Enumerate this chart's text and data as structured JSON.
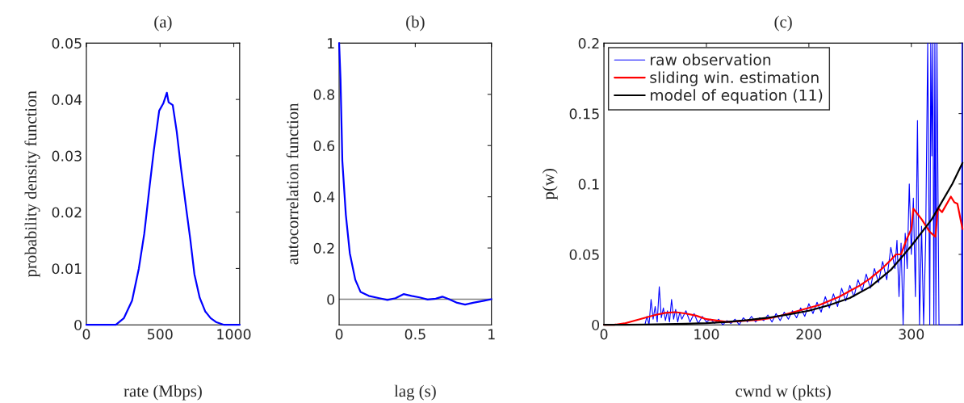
{
  "chart_data": [
    {
      "type": "line",
      "title": "(a)",
      "xlabel": "rate (Mbps)",
      "ylabel": "probability density function",
      "xlim": [
        0,
        1040
      ],
      "xticks": [
        0,
        500,
        1000
      ],
      "ylim": [
        0,
        0.05
      ],
      "yticks": [
        0,
        0.01,
        0.02,
        0.03,
        0.04,
        0.05
      ],
      "grid": false,
      "legend": false,
      "series": [
        {
          "color": "#0000ff",
          "x": [
            0,
            200,
            255,
            310,
            356,
            393,
            430,
            458,
            494,
            522,
            546,
            558,
            586,
            613,
            641,
            678,
            705,
            733,
            769,
            806,
            843,
            879,
            934,
            1040
          ],
          "values": [
            0,
            0,
            0.0012,
            0.0043,
            0.01,
            0.0162,
            0.0248,
            0.031,
            0.038,
            0.0393,
            0.0412,
            0.0395,
            0.039,
            0.0343,
            0.028,
            0.0205,
            0.0152,
            0.009,
            0.0048,
            0.0024,
            0.0012,
            0.0005,
            0,
            0
          ]
        }
      ]
    },
    {
      "type": "line",
      "title": "(b)",
      "xlabel": "lag (s)",
      "ylabel": "autocorrelation function",
      "xlim": [
        0,
        1
      ],
      "xticks": [
        0,
        0.5,
        1
      ],
      "ylim": [
        -0.1,
        1
      ],
      "yticks": [
        0,
        0.2,
        0.4,
        0.6,
        0.8,
        1
      ],
      "grid": false,
      "legend": false,
      "ref_lines": [
        {
          "axis": "y",
          "value": 0,
          "color": "#808080"
        }
      ],
      "series": [
        {
          "color": "#0000ff",
          "x": [
            0,
            0.009,
            0.021,
            0.044,
            0.07,
            0.106,
            0.141,
            0.194,
            0.264,
            0.317,
            0.37,
            0.423,
            0.475,
            0.528,
            0.581,
            0.634,
            0.678,
            0.722,
            0.775,
            0.827,
            0.88,
            0.951,
            1
          ],
          "values": [
            1,
            0.86,
            0.54,
            0.33,
            0.18,
            0.076,
            0.028,
            0.013,
            0.004,
            -0.003,
            0.004,
            0.02,
            0.013,
            0.007,
            -0.001,
            0.002,
            0.01,
            0,
            -0.014,
            -0.021,
            -0.014,
            -0.006,
            0
          ]
        }
      ]
    },
    {
      "type": "line",
      "title": "(c)",
      "xlabel": "cwnd w (pkts)",
      "ylabel": "p(w)",
      "xlim": [
        0,
        350
      ],
      "xticks": [
        0,
        100,
        200,
        300
      ],
      "ylim": [
        0,
        0.2
      ],
      "yticks": [
        0,
        0.05,
        0.1,
        0.15,
        0.2
      ],
      "grid": false,
      "legend": "top left",
      "series": [
        {
          "name": "raw observation",
          "color": "#0000ff",
          "x": [
            0,
            40,
            42,
            44,
            46,
            48,
            50,
            52,
            54,
            56,
            58,
            60,
            62,
            64,
            66,
            68,
            70,
            72,
            74,
            76,
            80,
            84,
            88,
            92,
            96,
            100,
            104,
            108,
            112,
            116,
            120,
            124,
            128,
            132,
            136,
            140,
            144,
            148,
            152,
            156,
            160,
            164,
            168,
            172,
            176,
            180,
            184,
            188,
            192,
            196,
            200,
            204,
            208,
            212,
            216,
            220,
            224,
            228,
            232,
            236,
            240,
            244,
            248,
            252,
            256,
            260,
            264,
            268,
            272,
            276,
            280,
            284,
            286,
            288,
            290,
            292,
            294,
            296,
            298,
            300,
            302,
            304,
            306,
            308,
            310,
            312,
            314,
            316,
            318,
            319,
            320,
            321,
            322,
            323,
            324,
            325,
            327,
            330,
            349,
            349.5,
            350
          ],
          "values": [
            0,
            0,
            0.006,
            0,
            0.018,
            0.004,
            0.013,
            0.002,
            0.027,
            0.005,
            0.012,
            0.003,
            0.01,
            0.002,
            0.018,
            0.004,
            0.011,
            0.002,
            0.009,
            0.004,
            0.01,
            0.002,
            0.008,
            0.001,
            0.006,
            0.002,
            0.004,
            0.001,
            0.004,
            0,
            0.003,
            0.001,
            0.004,
            0,
            0.005,
            0.002,
            0.006,
            0.002,
            0.005,
            0.003,
            0.007,
            0.002,
            0.008,
            0.003,
            0.009,
            0.004,
            0.01,
            0.005,
            0.012,
            0.006,
            0.015,
            0.008,
            0.016,
            0.009,
            0.02,
            0.012,
            0.022,
            0.013,
            0.026,
            0.017,
            0.028,
            0.02,
            0.032,
            0.024,
            0.036,
            0.026,
            0.04,
            0.03,
            0.045,
            0.032,
            0.055,
            0.04,
            0.06,
            0.02,
            0.058,
            0,
            0.065,
            0.04,
            0.1,
            0.05,
            0.09,
            0.02,
            0.145,
            0,
            0.07,
            0,
            0.06,
            0.2,
            0,
            0.2,
            0.12,
            0.2,
            0,
            0.2,
            0,
            0.2,
            0,
            0,
            0,
            0.2,
            0
          ]
        },
        {
          "name": "sliding win. estimation",
          "color": "#ff0000",
          "x": [
            0,
            10,
            20,
            30,
            40,
            50,
            60,
            70,
            80,
            90,
            100,
            110,
            120,
            130,
            140,
            150,
            160,
            170,
            180,
            190,
            200,
            210,
            220,
            230,
            240,
            250,
            260,
            270,
            280,
            285,
            290,
            295,
            300,
            302,
            310,
            318,
            323.5,
            326,
            330,
            338.6,
            342,
            345,
            348,
            350
          ],
          "values": [
            0,
            0,
            0.001,
            0.003,
            0.005,
            0.007,
            0.0085,
            0.009,
            0.008,
            0.0065,
            0.004,
            0.003,
            0.002,
            0.0025,
            0.003,
            0.0035,
            0.0045,
            0.006,
            0.008,
            0.01,
            0.012,
            0.014,
            0.017,
            0.02,
            0.024,
            0.028,
            0.033,
            0.039,
            0.046,
            0.05,
            0.05,
            0.06,
            0.068,
            0.0825,
            0.075,
            0.066,
            0.0625,
            0.083,
            0.08,
            0.091,
            0.087,
            0.086,
            0.075,
            0.068
          ]
        },
        {
          "name": "model of equation (11)",
          "color": "#000000",
          "x": [
            0,
            20,
            40,
            60,
            80,
            100,
            120,
            140,
            160,
            180,
            200,
            220,
            240,
            260,
            280,
            300,
            320,
            340,
            350
          ],
          "values": [
            0,
            0,
            0.0002,
            0.0005,
            0.0008,
            0.0012,
            0.002,
            0.0033,
            0.005,
            0.0073,
            0.01,
            0.014,
            0.019,
            0.027,
            0.039,
            0.056,
            0.075,
            0.1,
            0.115
          ]
        }
      ]
    }
  ]
}
